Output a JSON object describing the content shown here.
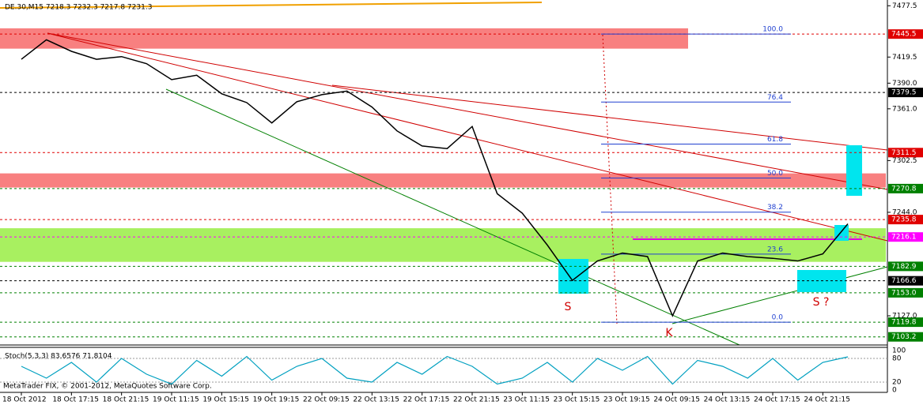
{
  "chart_data": {
    "type": "line",
    "title": "DE.30,M15  7218.3 7232.3 7217.8 7231.3",
    "footer": "MetaTrader FIX, © 2001-2012, MetaQuotes Software Corp.",
    "categories": [
      "18 Oct 2012",
      null,
      "18 Oct 17:15",
      null,
      "18 Oct 21:15",
      null,
      "19 Oct 11:15",
      null,
      "19 Oct 15:15",
      null,
      "19 Oct 19:15",
      null,
      "22 Oct 09:15",
      null,
      "22 Oct 13:15",
      null,
      "22 Oct 17:15",
      null,
      "22 Oct 21:15",
      null,
      "23 Oct 11:15",
      null,
      "23 Oct 15:15",
      null,
      "23 Oct 19:15",
      null,
      "24 Oct 09:15",
      null,
      "24 Oct 13:15",
      null,
      "24 Oct 17:15",
      null,
      "24 Oct 21:15",
      null
    ],
    "series": [
      {
        "name": "DE.30",
        "color": "#000000",
        "values": [
          7417,
          7439,
          7426,
          7417,
          7420,
          7412,
          7394,
          7399,
          7378,
          7368,
          7345,
          7369,
          7377,
          7381,
          7363,
          7336,
          7319,
          7316,
          7341,
          7265,
          7243,
          7207,
          7167,
          7189,
          7198,
          7194,
          7127,
          7189,
          7198,
          7194,
          7192,
          7189,
          7197,
          7231
        ]
      }
    ],
    "ylim": [
      7094,
      7484
    ],
    "yticks": [
      {
        "value": 7477.5,
        "label": "7477.5"
      },
      {
        "value": 7419.5,
        "label": "7419.5"
      },
      {
        "value": 7390,
        "label": "7390.0"
      },
      {
        "value": 7361,
        "label": "7361.0"
      },
      {
        "value": 7302.5,
        "label": "7302.5"
      },
      {
        "value": 7244,
        "label": "7244.0"
      },
      {
        "value": 7127,
        "label": "7127.0"
      }
    ],
    "levels": [
      {
        "value": 7445.5,
        "color": "#e00000"
      },
      {
        "value": 7379.5,
        "color": "#000000"
      },
      {
        "value": 7311.5,
        "color": "#e00000"
      },
      {
        "value": 7270.8,
        "color": "#008000"
      },
      {
        "value": 7235.8,
        "color": "#e00000"
      },
      {
        "value": 7216.1,
        "color": "#ff00ff"
      },
      {
        "value": 7182.9,
        "color": "#008000"
      },
      {
        "value": 7166.6,
        "color": "#000000"
      },
      {
        "value": 7153,
        "label": "7153.0",
        "color": "#008000"
      },
      {
        "value": 7119.8,
        "color": "#008000"
      },
      {
        "value": 7103.2,
        "color": "#008000"
      }
    ],
    "zones": [
      {
        "from": 7429,
        "to": 7452,
        "color": "#f88080"
      },
      {
        "from": 7272,
        "to": 7288,
        "color": "#f88080"
      },
      {
        "from": 7188,
        "to": 7226,
        "color": "#a8f060"
      }
    ],
    "fibo": [
      {
        "label": "100.0",
        "value": 7445.5
      },
      {
        "label": "76.4",
        "value": 7368.6
      },
      {
        "label": "61.8",
        "value": 7321.1
      },
      {
        "label": "50.0",
        "value": 7282.7
      },
      {
        "label": "38.2",
        "value": 7244.2
      },
      {
        "label": "23.6",
        "value": 7196.7
      },
      {
        "label": "0.0",
        "value": 7119.8
      }
    ],
    "annotations": [
      "S",
      "K",
      "S ?"
    ],
    "stoch": {
      "title": "Stoch(5,3,3) 83.6576 71.8104",
      "color": "#00a0c0",
      "values": [
        60,
        30,
        70,
        20,
        80,
        40,
        15,
        75,
        35,
        85,
        25,
        60,
        80,
        30,
        20,
        70,
        40,
        85,
        60,
        15,
        30,
        70,
        20,
        80,
        50,
        85,
        15,
        75,
        60,
        30,
        80,
        25,
        70,
        84
      ],
      "ylim": [
        0,
        100
      ],
      "yticks": [
        100,
        80,
        20,
        0
      ]
    }
  }
}
